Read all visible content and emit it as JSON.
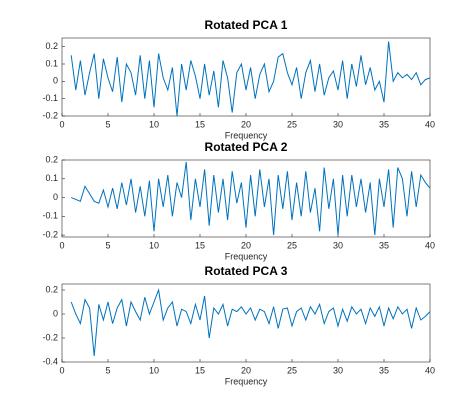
{
  "chart_data": [
    {
      "type": "line",
      "title": "Rotated PCA 1",
      "x_label": "Frequency",
      "x": [
        1,
        1.5,
        2,
        2.5,
        3,
        3.5,
        4,
        4.5,
        5,
        5.5,
        6,
        6.5,
        7,
        7.5,
        8,
        8.5,
        9,
        9.5,
        10,
        10.5,
        11,
        11.5,
        12,
        12.5,
        13,
        13.5,
        14,
        14.5,
        15,
        15.5,
        16,
        16.5,
        17,
        17.5,
        18,
        18.5,
        19,
        19.5,
        20,
        20.5,
        21,
        21.5,
        22,
        22.5,
        23,
        23.5,
        24,
        24.5,
        25,
        25.5,
        26,
        26.5,
        27,
        27.5,
        28,
        28.5,
        29,
        29.5,
        30,
        30.5,
        31,
        31.5,
        32,
        32.5,
        33,
        33.5,
        34,
        34.5,
        35,
        35.5,
        36,
        36.5,
        37,
        37.5,
        38,
        38.5,
        39,
        39.5,
        40
      ],
      "series": [
        {
          "color": "#0072bd",
          "values": [
            0.15,
            -0.05,
            0.12,
            -0.08,
            0.05,
            0.16,
            -0.1,
            0.13,
            0.02,
            -0.06,
            0.14,
            -0.12,
            0.1,
            0.05,
            -0.08,
            0.15,
            -0.1,
            0.12,
            -0.15,
            0.16,
            0.02,
            -0.05,
            0.08,
            -0.2,
            0.1,
            -0.05,
            0.12,
            0.03,
            -0.1,
            0.1,
            -0.08,
            0.06,
            -0.15,
            0.12,
            0.02,
            -0.18,
            0.05,
            0.1,
            -0.05,
            0.08,
            -0.1,
            0.04,
            0.1,
            -0.06,
            0.0,
            0.14,
            0.16,
            0.05,
            -0.02,
            0.08,
            -0.1,
            0.05,
            0.12,
            -0.06,
            0.1,
            -0.08,
            0.02,
            0.06,
            -0.05,
            0.12,
            -0.1,
            0.1,
            -0.03,
            0.15,
            -0.02,
            0.08,
            -0.05,
            0.0,
            -0.12,
            0.23,
            0.0,
            0.05,
            0.02,
            0.04,
            0.01,
            0.05,
            -0.02,
            0.01,
            0.02
          ]
        }
      ],
      "xlim": [
        0,
        40
      ],
      "xticks": [
        0,
        5,
        10,
        15,
        20,
        25,
        30,
        35,
        40
      ],
      "ylim": [
        -0.2,
        0.25
      ],
      "yticks": [
        -0.2,
        -0.1,
        0,
        0.1,
        0.2
      ]
    },
    {
      "type": "line",
      "title": "Rotated PCA 2",
      "x_label": "Frequency",
      "x": [
        1,
        1.5,
        2,
        2.5,
        3,
        3.5,
        4,
        4.5,
        5,
        5.5,
        6,
        6.5,
        7,
        7.5,
        8,
        8.5,
        9,
        9.5,
        10,
        10.5,
        11,
        11.5,
        12,
        12.5,
        13,
        13.5,
        14,
        14.5,
        15,
        15.5,
        16,
        16.5,
        17,
        17.5,
        18,
        18.5,
        19,
        19.5,
        20,
        20.5,
        21,
        21.5,
        22,
        22.5,
        23,
        23.5,
        24,
        24.5,
        25,
        25.5,
        26,
        26.5,
        27,
        27.5,
        28,
        28.5,
        29,
        29.5,
        30,
        30.5,
        31,
        31.5,
        32,
        32.5,
        33,
        33.5,
        34,
        34.5,
        35,
        35.5,
        36,
        36.5,
        37,
        37.5,
        38,
        38.5,
        39,
        39.5,
        40
      ],
      "series": [
        {
          "color": "#0072bd",
          "values": [
            0,
            -0.01,
            -0.02,
            0.06,
            0.02,
            -0.02,
            -0.03,
            0.04,
            -0.05,
            0.05,
            -0.06,
            0.08,
            -0.04,
            0.1,
            -0.08,
            0.06,
            -0.1,
            0.09,
            -0.18,
            0.1,
            -0.05,
            0.12,
            -0.1,
            0.08,
            0.0,
            0.19,
            -0.12,
            0.1,
            -0.05,
            0.15,
            -0.15,
            0.12,
            -0.08,
            0.1,
            -0.12,
            0.14,
            -0.03,
            0.08,
            -0.16,
            0.12,
            -0.1,
            0.15,
            -0.05,
            0.1,
            -0.2,
            0.12,
            -0.06,
            0.14,
            -0.12,
            0.08,
            -0.1,
            0.14,
            -0.08,
            0.05,
            -0.18,
            0.16,
            -0.06,
            0.1,
            -0.2,
            0.12,
            -0.1,
            0.12,
            -0.05,
            0.1,
            -0.08,
            0.08,
            -0.2,
            0.1,
            -0.05,
            0.15,
            -0.16,
            0.16,
            0.1,
            -0.1,
            0.14,
            -0.05,
            0.12,
            0.08,
            0.05
          ]
        }
      ],
      "xlim": [
        0,
        40
      ],
      "xticks": [
        0,
        5,
        10,
        15,
        20,
        25,
        30,
        35,
        40
      ],
      "ylim": [
        -0.21,
        0.2
      ],
      "yticks": [
        -0.2,
        -0.1,
        0,
        0.1,
        0.2
      ]
    },
    {
      "type": "line",
      "title": "Rotated PCA 3",
      "x_label": "Frequency",
      "x": [
        1,
        1.5,
        2,
        2.5,
        3,
        3.5,
        4,
        4.5,
        5,
        5.5,
        6,
        6.5,
        7,
        7.5,
        8,
        8.5,
        9,
        9.5,
        10,
        10.5,
        11,
        11.5,
        12,
        12.5,
        13,
        13.5,
        14,
        14.5,
        15,
        15.5,
        16,
        16.5,
        17,
        17.5,
        18,
        18.5,
        19,
        19.5,
        20,
        20.5,
        21,
        21.5,
        22,
        22.5,
        23,
        23.5,
        24,
        24.5,
        25,
        25.5,
        26,
        26.5,
        27,
        27.5,
        28,
        28.5,
        29,
        29.5,
        30,
        30.5,
        31,
        31.5,
        32,
        32.5,
        33,
        33.5,
        34,
        34.5,
        35,
        35.5,
        36,
        36.5,
        37,
        37.5,
        38,
        38.5,
        39,
        39.5,
        40
      ],
      "series": [
        {
          "color": "#0072bd",
          "values": [
            0.1,
            0.0,
            -0.08,
            0.12,
            0.05,
            -0.35,
            0.08,
            -0.05,
            0.1,
            -0.08,
            0.05,
            0.12,
            -0.1,
            0.1,
            0.02,
            -0.05,
            0.14,
            0.0,
            0.1,
            0.2,
            -0.05,
            0.05,
            0.1,
            -0.1,
            0.04,
            0.02,
            -0.08,
            0.08,
            -0.05,
            0.15,
            -0.2,
            0.05,
            0.0,
            0.08,
            -0.1,
            0.04,
            0.02,
            0.06,
            0.0,
            0.05,
            -0.05,
            0.04,
            0.02,
            -0.08,
            0.06,
            -0.12,
            0.04,
            0.05,
            -0.1,
            0.02,
            0.05,
            -0.05,
            0.06,
            0.0,
            0.08,
            -0.08,
            0.02,
            0.05,
            -0.1,
            0.04,
            -0.06,
            0.06,
            0.0,
            0.04,
            -0.08,
            0.05,
            -0.02,
            0.06,
            -0.1,
            0.05,
            -0.04,
            0.06,
            0.0,
            0.04,
            -0.12,
            0.05,
            -0.05,
            -0.02,
            0.02
          ]
        }
      ],
      "xlim": [
        0,
        40
      ],
      "xticks": [
        0,
        5,
        10,
        15,
        20,
        25,
        30,
        35,
        40
      ],
      "ylim": [
        -0.4,
        0.25
      ],
      "yticks": [
        -0.4,
        -0.2,
        0,
        0.2
      ]
    }
  ]
}
